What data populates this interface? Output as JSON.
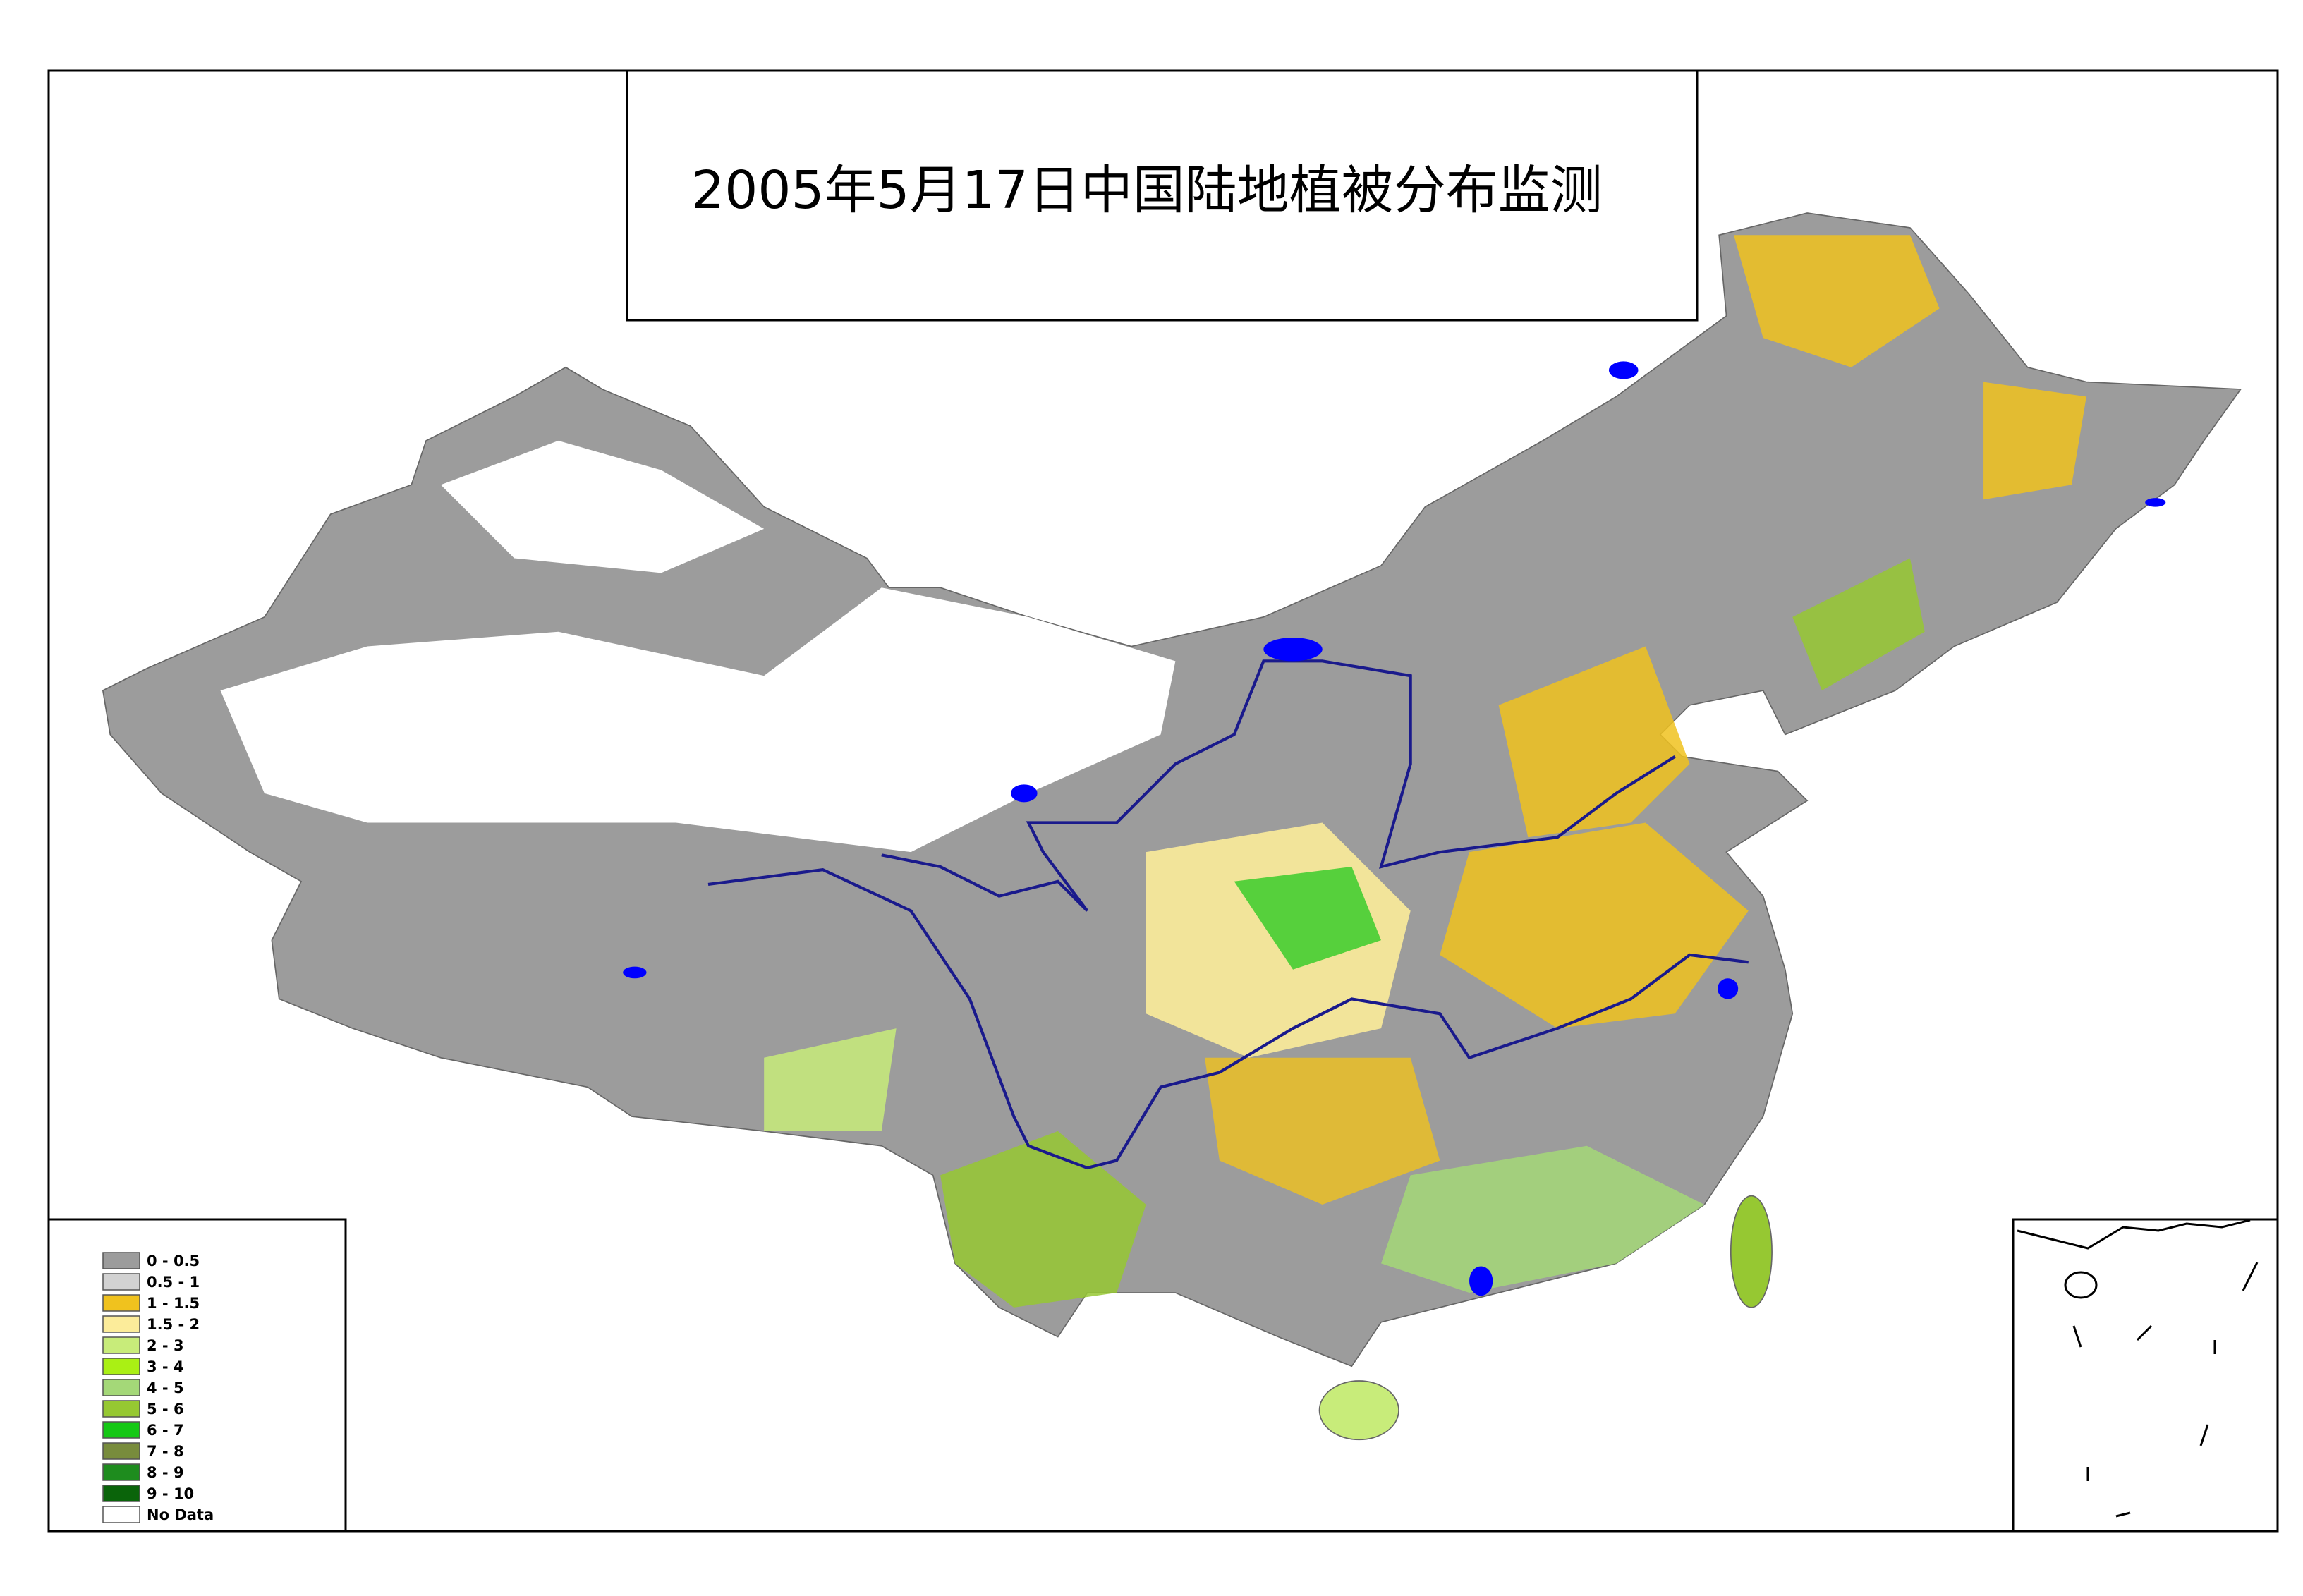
{
  "title": "2005年5月17日中国陆地植被分布监测",
  "legend": {
    "items": [
      {
        "label": "0 - 0.5",
        "color": "#9c9c9c"
      },
      {
        "label": "0.5 - 1",
        "color": "#d2d2d2"
      },
      {
        "label": "1 - 1.5",
        "color": "#f0c21e"
      },
      {
        "label": "1.5 - 2",
        "color": "#fcec9a"
      },
      {
        "label": "2 - 3",
        "color": "#c8ec7a"
      },
      {
        "label": "3 - 4",
        "color": "#aaf014"
      },
      {
        "label": "4 - 5",
        "color": "#a4d878"
      },
      {
        "label": "5 - 6",
        "color": "#96c832"
      },
      {
        "label": "6 - 7",
        "color": "#14c814"
      },
      {
        "label": "7 - 8",
        "color": "#788c3c"
      },
      {
        "label": "8 - 9",
        "color": "#1e8c1e"
      },
      {
        "label": "9 - 10",
        "color": "#0a640a"
      },
      {
        "label": "No Data",
        "color": "#ffffff"
      }
    ]
  }
}
